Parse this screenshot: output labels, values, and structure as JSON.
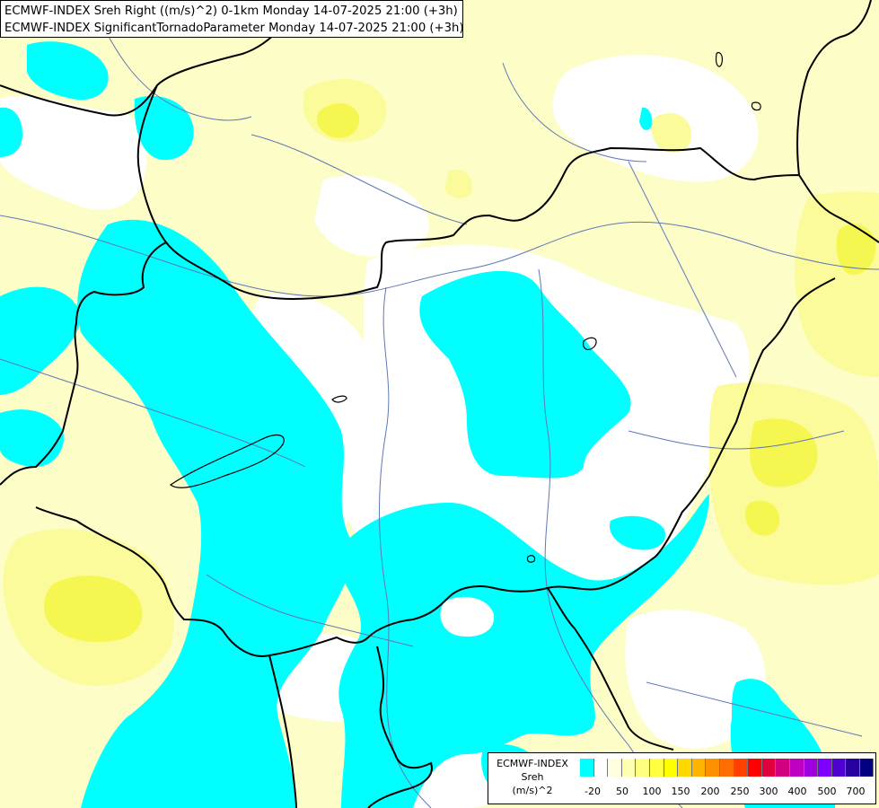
{
  "title": {
    "line1": "ECMWF-INDEX Sreh Right ((m/s)^2) 0-1km Monday 14-07-2025 21:00 (+3h)",
    "line2": "ECMWF-INDEX SignificantTornadoParameter Monday 14-07-2025 21:00 (+3h)"
  },
  "legend": {
    "line1": "ECMWF-INDEX",
    "line2": "Sreh",
    "line3": "(m/s)^2",
    "colors": [
      "#00ffff",
      "#ffffff",
      "#ffffe0",
      "#ffffb0",
      "#ffff80",
      "#ffff40",
      "#ffff00",
      "#ffd800",
      "#ffb400",
      "#ff9000",
      "#ff6c00",
      "#ff4000",
      "#ff0000",
      "#e00040",
      "#d00080",
      "#c000c0",
      "#a000e0",
      "#8000ff",
      "#5000d0",
      "#2800a0",
      "#000080"
    ],
    "ticks": [
      "-20",
      "50",
      "100",
      "150",
      "200",
      "250",
      "300",
      "400",
      "500",
      "700"
    ]
  },
  "map_colors": {
    "cyan": "#00ffff",
    "white": "#ffffff",
    "pale_yellow": "#fdfdc8",
    "light_yellow": "#fbfb9c",
    "yellow": "#f6f650",
    "border": "#000000",
    "river": "#5f78b4"
  }
}
